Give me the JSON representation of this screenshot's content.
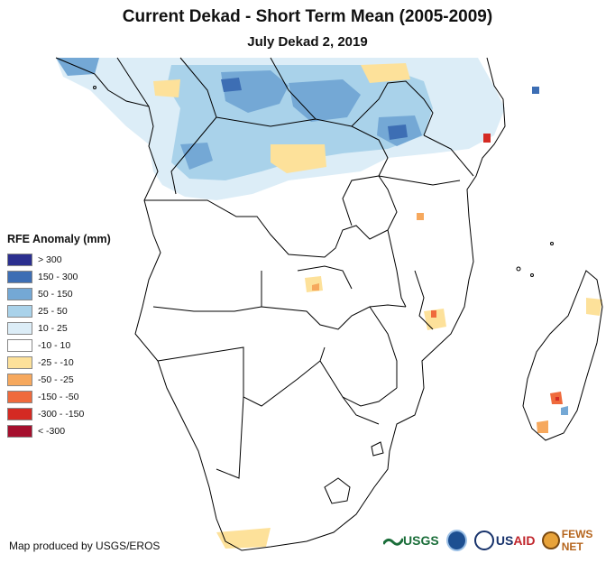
{
  "title": "Current Dekad - Short Term Mean (2005-2009)",
  "subtitle": "July Dekad 2, 2019",
  "legend": {
    "title": "RFE Anomaly (mm)",
    "items": [
      {
        "label": "> 300",
        "color": "#2b2f8f"
      },
      {
        "label": "150 - 300",
        "color": "#3d6eb4"
      },
      {
        "label": "50 - 150",
        "color": "#74a8d5"
      },
      {
        "label": "25 - 50",
        "color": "#a9d2ea"
      },
      {
        "label": "10 - 25",
        "color": "#dcedf7"
      },
      {
        "label": "-10 - 10",
        "color": "#ffffff"
      },
      {
        "label": "-25 - -10",
        "color": "#fde19a"
      },
      {
        "label": "-50 - -25",
        "color": "#f6a85d"
      },
      {
        "label": "-150 - -50",
        "color": "#ef6a3c"
      },
      {
        "label": "-300 - -150",
        "color": "#d42a23"
      },
      {
        "label": "< -300",
        "color": "#a50f2d"
      }
    ]
  },
  "footer": {
    "credit": "Map produced by USGS/EROS"
  },
  "logos": {
    "usgs": "USGS",
    "usaid_us": "US",
    "usaid_aid": "AID",
    "fewsnet": "FEWS NET"
  }
}
